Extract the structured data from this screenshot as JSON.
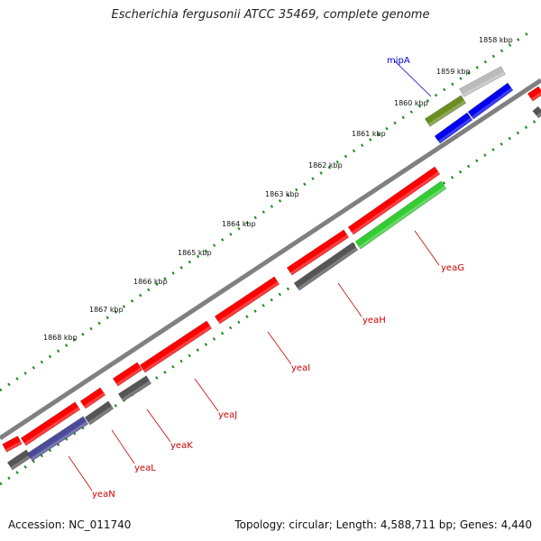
{
  "header": {
    "title": "Escherichia fergusonii ATCC 35469, complete genome"
  },
  "footer": {
    "accession": "Accession: NC_011740",
    "summary": "Topology: circular; Length: 4,588,711 bp; Genes: 4,440"
  },
  "map": {
    "ticks": [
      {
        "label": "1858 kbp"
      },
      {
        "label": "1859 kbp"
      },
      {
        "label": "1860 kbp"
      },
      {
        "label": "1861 kbp"
      },
      {
        "label": "1862 kbp"
      },
      {
        "label": "1863 kbp"
      },
      {
        "label": "1864 kbp"
      },
      {
        "label": "1865 kbp"
      },
      {
        "label": "1866 kbp"
      },
      {
        "label": "1867 kbp"
      },
      {
        "label": "1868 kbp"
      }
    ],
    "gene_labels": [
      {
        "name": "mipA",
        "color": "#0000cc"
      },
      {
        "name": "yeaG",
        "color": "#cc0000"
      },
      {
        "name": "yeaH",
        "color": "#cc0000"
      },
      {
        "name": "yeaI",
        "color": "#cc0000"
      },
      {
        "name": "yeaJ",
        "color": "#cc0000"
      },
      {
        "name": "yeaK",
        "color": "#cc0000"
      },
      {
        "name": "yeaL",
        "color": "#cc0000"
      },
      {
        "name": "yeaN",
        "color": "#cc0000"
      }
    ],
    "colors": {
      "backbone": "#808080",
      "tick_dots": "#1a8a1a",
      "cds_forward": "#ff0000",
      "cds_reverse": "#555555",
      "highlight_green": "#33cc33",
      "highlight_blue": "#0000ee",
      "olive": "#6b8e23",
      "purple": "#4b4b99",
      "light_gray": "#bbbbbb"
    }
  }
}
